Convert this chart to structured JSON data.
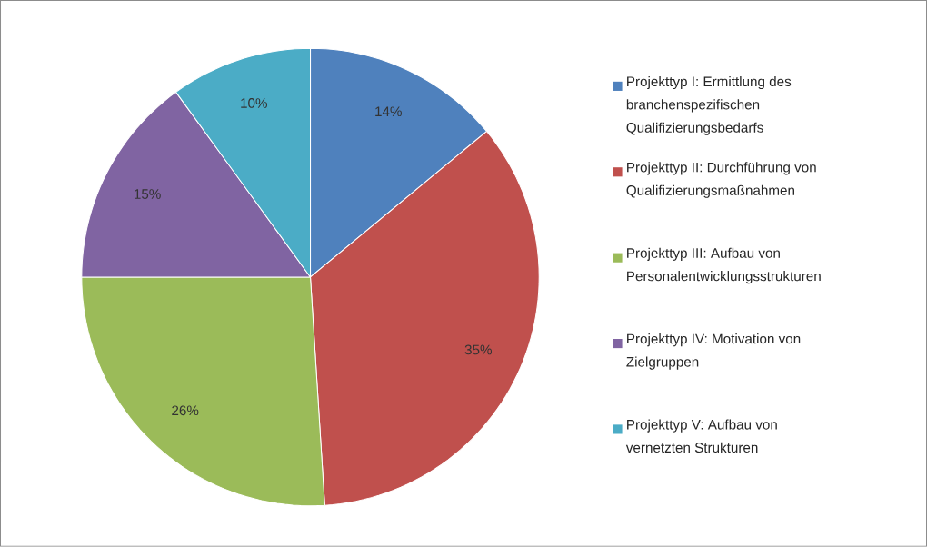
{
  "chart_data": {
    "type": "pie",
    "categories": [
      "Projekttyp I: Ermittlung des branchenspezifischen Qualifizierungsbedarfs",
      "Projekttyp II: Durchführung von Qualifizierungsmaßnahmen",
      "Projekttyp III: Aufbau von Personalentwicklungsstrukturen",
      "Projekttyp IV: Motivation von Zielgruppen",
      "Projekttyp V: Aufbau von vernetzten Strukturen"
    ],
    "values": [
      14,
      35,
      26,
      15,
      10
    ],
    "colors": [
      "#4f81bd",
      "#c0504d",
      "#9bbb59",
      "#8064a2",
      "#4bacc6"
    ],
    "value_labels": [
      "14%",
      "35%",
      "26%",
      "15%",
      "10%"
    ],
    "legend": "right"
  }
}
